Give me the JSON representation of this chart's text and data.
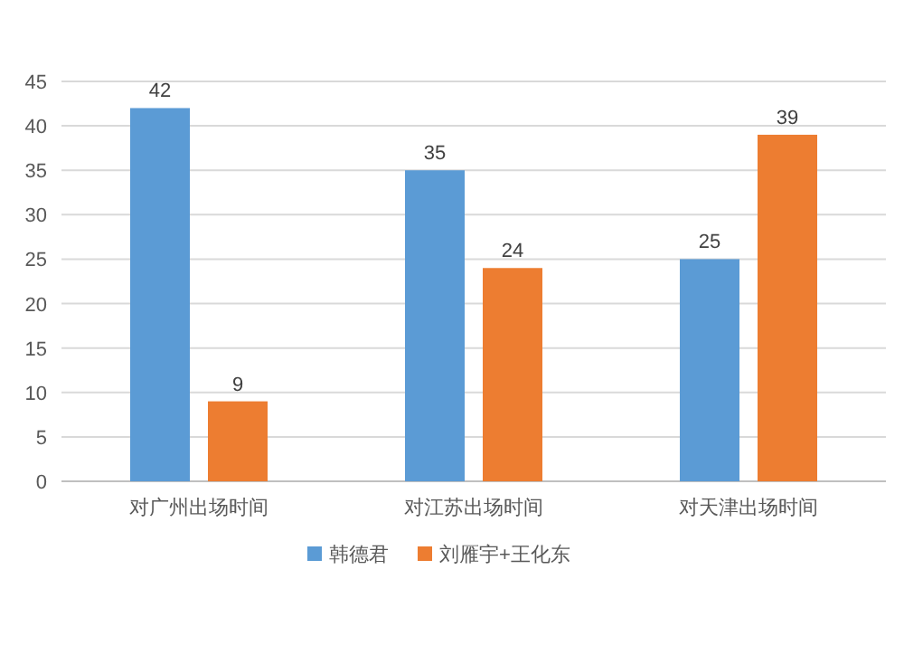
{
  "chart_data": {
    "type": "bar",
    "categories": [
      "对广州出场时间",
      "对江苏出场时间",
      "对天津出场时间"
    ],
    "series": [
      {
        "name": "韩德君",
        "color": "#5b9bd5",
        "values": [
          42,
          35,
          25
        ]
      },
      {
        "name": "刘雁宇+王化东",
        "color": "#ed7d31",
        "values": [
          9,
          24,
          39
        ]
      }
    ],
    "ylim": [
      0,
      45
    ],
    "yticks": [
      0,
      5,
      10,
      15,
      20,
      25,
      30,
      35,
      40,
      45
    ],
    "grid": "y",
    "legend": "bottom",
    "data_labels": true
  }
}
